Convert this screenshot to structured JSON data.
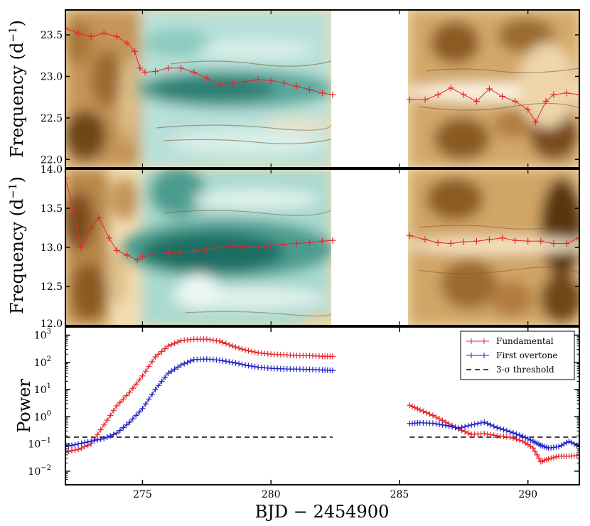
{
  "chart_data": [
    {
      "type": "heatmap",
      "panel": "top",
      "ylabel": "Frequency (d",
      "ylabel_sup": "−1",
      "ylabel_close": ")",
      "ylim": [
        21.9,
        23.8
      ],
      "yticks": [
        22.0,
        22.5,
        23.0,
        23.5
      ],
      "ytick_labels": [
        "22.0",
        "22.5",
        "23.0",
        "23.5"
      ],
      "gap": [
        282.4,
        285.4
      ],
      "ridge_x": [
        272.0,
        272.5,
        273.0,
        273.5,
        274.0,
        274.4,
        274.7,
        274.9,
        275.1,
        275.5,
        276.0,
        276.5,
        277.0,
        277.5,
        278.0,
        278.5,
        279.0,
        279.5,
        280.0,
        280.5,
        281.0,
        281.5,
        282.0,
        282.4,
        285.4,
        286.0,
        286.5,
        287.0,
        287.5,
        288.0,
        288.5,
        289.0,
        289.5,
        290.0,
        290.3,
        290.7,
        291.0,
        291.5,
        292.0
      ],
      "ridge_y": [
        23.58,
        23.52,
        23.48,
        23.52,
        23.48,
        23.4,
        23.3,
        23.1,
        23.05,
        23.06,
        23.1,
        23.1,
        23.05,
        22.98,
        22.9,
        22.92,
        22.94,
        22.96,
        22.95,
        22.92,
        22.88,
        22.84,
        22.8,
        22.78,
        22.72,
        22.72,
        22.78,
        22.86,
        22.78,
        22.7,
        22.85,
        22.76,
        22.7,
        22.6,
        22.45,
        22.7,
        22.78,
        22.8,
        22.78
      ]
    },
    {
      "type": "heatmap",
      "panel": "middle",
      "ylabel": "Frequency (d",
      "ylabel_sup": "−1",
      "ylabel_close": ")",
      "ylim": [
        12.0,
        14.0
      ],
      "yticks": [
        12.0,
        12.5,
        13.0,
        13.5,
        14.0
      ],
      "ytick_labels": [
        "12.0",
        "12.5",
        "13.0",
        "13.5",
        "14.0"
      ],
      "gap": [
        282.4,
        285.4
      ],
      "ridge_x": [
        272.0,
        272.3,
        272.6,
        273.0,
        273.3,
        273.7,
        274.0,
        274.4,
        274.8,
        275.0,
        275.5,
        276.0,
        276.5,
        277.0,
        277.5,
        278.0,
        278.5,
        279.0,
        279.5,
        280.0,
        280.5,
        281.0,
        281.5,
        282.0,
        282.4,
        285.4,
        286.0,
        286.5,
        287.0,
        287.5,
        288.0,
        288.5,
        289.0,
        289.5,
        290.0,
        290.5,
        291.0,
        291.5,
        292.0
      ],
      "ridge_y": [
        13.88,
        13.5,
        13.0,
        13.25,
        13.38,
        13.12,
        12.96,
        12.9,
        12.84,
        12.88,
        12.92,
        12.93,
        12.94,
        12.95,
        12.97,
        13.0,
        13.02,
        13.01,
        13.0,
        13.02,
        13.04,
        13.05,
        13.06,
        13.08,
        13.09,
        13.15,
        13.1,
        13.06,
        13.05,
        13.07,
        13.08,
        13.1,
        13.12,
        13.09,
        13.08,
        13.08,
        13.05,
        13.05,
        13.12
      ]
    },
    {
      "type": "line",
      "panel": "bottom",
      "xlabel": "BJD − 2454900",
      "ylabel": "Power",
      "log_y": true,
      "ylim_exp": [
        -2.5,
        3.3
      ],
      "ytick_bases": [
        "10",
        "10",
        "10",
        "10",
        "10",
        "10"
      ],
      "ytick_exponents": [
        "−2",
        "−1",
        "0",
        "1",
        "2",
        "3"
      ],
      "xlim": [
        272.0,
        292.0
      ],
      "xticks": [
        275,
        280,
        285,
        290
      ],
      "xtick_labels": [
        "275",
        "280",
        "285",
        "290"
      ],
      "threshold_log": -0.75,
      "series": [
        {
          "name": "Fundamental",
          "color": "#e8262b",
          "x": [
            272.0,
            272.5,
            273.0,
            273.5,
            274.0,
            274.5,
            275.0,
            275.5,
            276.0,
            276.5,
            277.0,
            277.5,
            278.0,
            278.5,
            279.0,
            279.5,
            280.0,
            280.5,
            281.0,
            281.5,
            282.0,
            282.4,
            285.4,
            285.8,
            286.3,
            286.8,
            287.3,
            287.8,
            288.3,
            288.8,
            289.3,
            289.8,
            290.2,
            290.5,
            290.8,
            291.2,
            291.6,
            292.0
          ],
          "log_values": [
            -1.3,
            -1.2,
            -1.0,
            -0.3,
            0.4,
            0.9,
            1.5,
            2.2,
            2.6,
            2.8,
            2.85,
            2.85,
            2.78,
            2.6,
            2.45,
            2.35,
            2.3,
            2.28,
            2.25,
            2.25,
            2.22,
            2.22,
            0.42,
            0.25,
            0.05,
            -0.2,
            -0.45,
            -0.65,
            -0.62,
            -0.7,
            -0.75,
            -0.9,
            -1.15,
            -1.65,
            -1.55,
            -1.45,
            -1.45,
            -1.42
          ]
        },
        {
          "name": "First overtone",
          "color": "#2323c8",
          "x": [
            272.0,
            272.5,
            273.0,
            273.5,
            274.0,
            274.5,
            275.0,
            275.5,
            276.0,
            276.5,
            277.0,
            277.5,
            278.0,
            278.5,
            279.0,
            279.5,
            280.0,
            280.5,
            281.0,
            281.5,
            282.0,
            282.4,
            285.4,
            285.8,
            286.3,
            286.8,
            287.3,
            287.8,
            288.3,
            288.8,
            289.3,
            289.8,
            290.2,
            290.5,
            290.8,
            291.2,
            291.6,
            292.0
          ],
          "log_values": [
            -1.1,
            -1.0,
            -0.9,
            -0.8,
            -0.6,
            -0.2,
            0.3,
            1.0,
            1.6,
            1.9,
            2.1,
            2.12,
            2.08,
            2.0,
            1.9,
            1.82,
            1.78,
            1.76,
            1.75,
            1.74,
            1.72,
            1.7,
            -0.25,
            -0.22,
            -0.24,
            -0.32,
            -0.42,
            -0.3,
            -0.2,
            -0.4,
            -0.55,
            -0.72,
            -0.9,
            -1.05,
            -1.15,
            -1.1,
            -0.9,
            -1.1
          ]
        }
      ],
      "legend": {
        "position": "top-right",
        "entries": [
          "Fundamental",
          "First overtone",
          "3-σ threshold"
        ]
      }
    }
  ],
  "colors": {
    "teal_dark": "#1f6e64",
    "brown_dark": "#6e4614",
    "cream": "#fbf3df",
    "threshold": "#000000"
  }
}
